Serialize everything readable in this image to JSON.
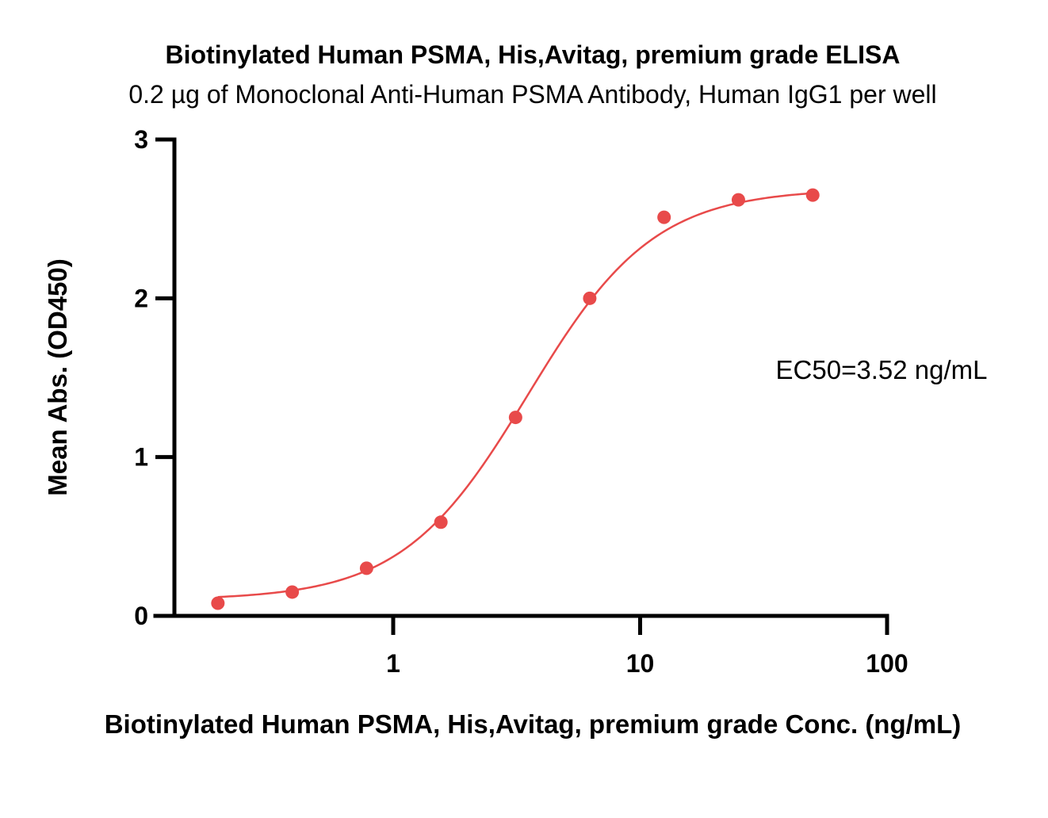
{
  "chart_data": {
    "type": "scatter",
    "title": "Biotinylated Human PSMA, His,Avitag, premium grade ELISA",
    "subtitle": "0.2 µg of Monoclonal Anti-Human PSMA Antibody, Human IgG1 per well",
    "xlabel": "Biotinylated Human PSMA, His,Avitag, premium grade Conc. (ng/mL)",
    "ylabel": "Mean Abs. (OD450)",
    "xscale": "log",
    "xlim": [
      0.13,
      100
    ],
    "ylim": [
      0,
      3
    ],
    "x_ticks": [
      1,
      10,
      100
    ],
    "x_tick_labels": [
      "1",
      "10",
      "100"
    ],
    "y_ticks": [
      0,
      1,
      2,
      3
    ],
    "y_tick_labels": [
      "0",
      "1",
      "2",
      "3"
    ],
    "grid": false,
    "annotation": "EC50=3.52 ng/mL",
    "color": "#e84a4a",
    "points": {
      "x": [
        0.195,
        0.39,
        0.78,
        1.56,
        3.13,
        6.25,
        12.5,
        25,
        50
      ],
      "y": [
        0.08,
        0.15,
        0.3,
        0.59,
        1.25,
        2.0,
        2.51,
        2.62,
        2.65
      ]
    },
    "fit": {
      "model": "4PL",
      "bottom": 0.1,
      "top": 2.69,
      "ec50": 3.52,
      "hill": 1.7
    }
  }
}
